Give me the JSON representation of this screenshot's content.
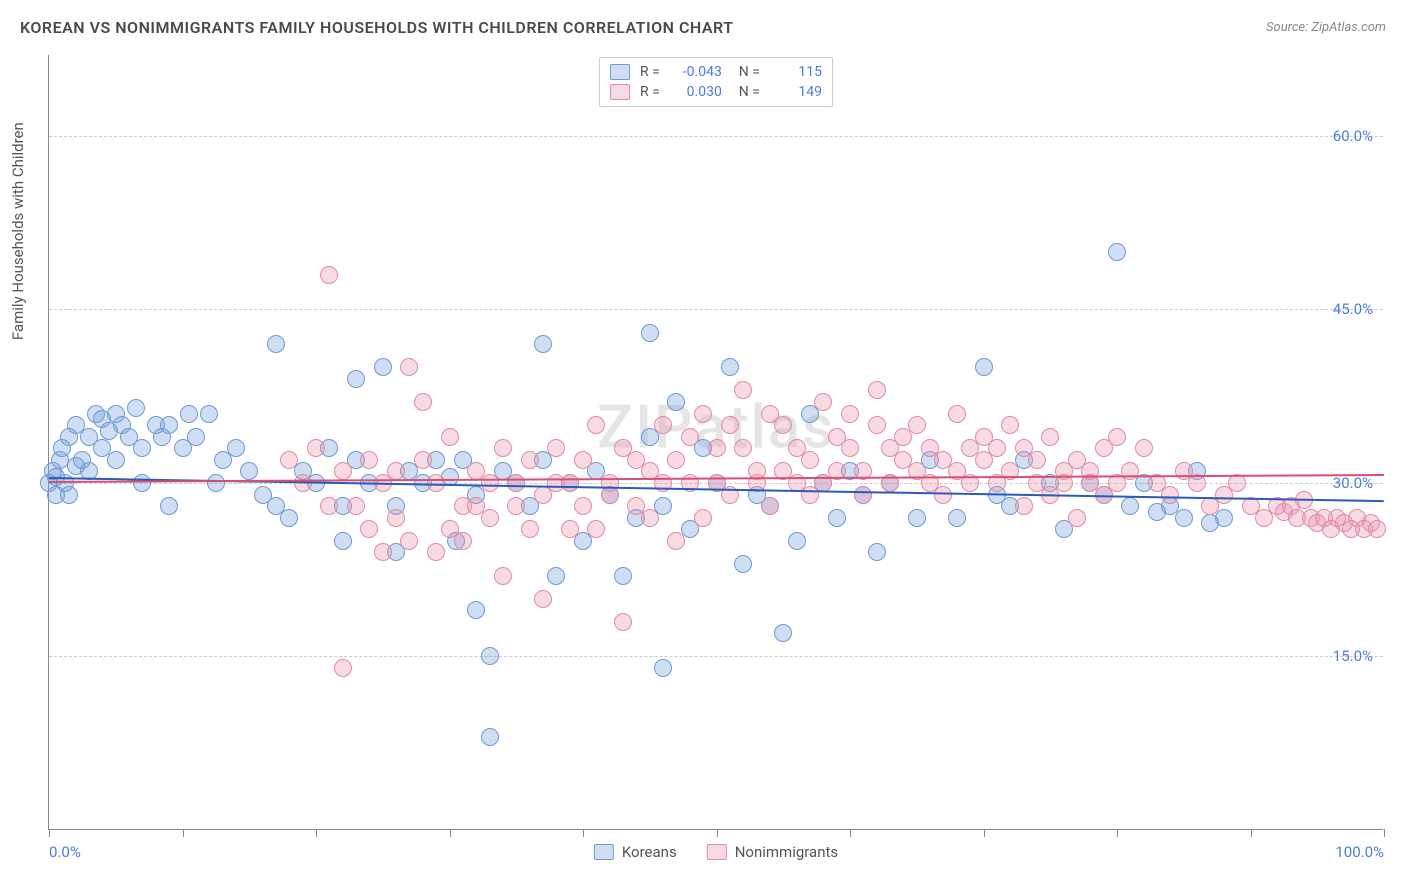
{
  "title": "KOREAN VS NONIMMIGRANTS FAMILY HOUSEHOLDS WITH CHILDREN CORRELATION CHART",
  "source": "Source: ZipAtlas.com",
  "watermark": "ZIPatlas",
  "ylabel": "Family Households with Children",
  "chart": {
    "type": "scatter",
    "xlim": [
      0,
      100
    ],
    "ylim": [
      0,
      67
    ],
    "yticks": [
      15,
      30,
      45,
      60
    ],
    "ytick_labels": [
      "15.0%",
      "30.0%",
      "45.0%",
      "60.0%"
    ],
    "xticks": [
      0,
      10,
      20,
      30,
      40,
      50,
      60,
      70,
      80,
      90,
      100
    ],
    "xtick_labels": {
      "0": "0.0%",
      "100": "100.0%"
    },
    "background_color": "#ffffff",
    "grid_color": "#cccccc",
    "axis_color": "#888888",
    "tick_label_color": "#4a7de0",
    "marker_radius": 9,
    "marker_stroke_width": 1.5
  },
  "series": {
    "koreans": {
      "label": "Koreans",
      "fill": "rgba(120,160,220,0.35)",
      "stroke": "#6f9ad6",
      "R": "-0.043",
      "N": "115",
      "trend": {
        "y_start": 30.5,
        "y_end": 28.5,
        "color": "#2a5bb8"
      },
      "points": [
        [
          0,
          30
        ],
        [
          0.3,
          31
        ],
        [
          0.5,
          29
        ],
        [
          0.5,
          30.5
        ],
        [
          0.8,
          32
        ],
        [
          1,
          33
        ],
        [
          1.2,
          30
        ],
        [
          1.5,
          34
        ],
        [
          1.5,
          29
        ],
        [
          2,
          31.5
        ],
        [
          2,
          35
        ],
        [
          2.5,
          32
        ],
        [
          3,
          34
        ],
        [
          3,
          31
        ],
        [
          3.5,
          36
        ],
        [
          4,
          33
        ],
        [
          4,
          35.5
        ],
        [
          4.5,
          34.5
        ],
        [
          5,
          32
        ],
        [
          5,
          36
        ],
        [
          5.5,
          35
        ],
        [
          6,
          34
        ],
        [
          6.5,
          36.5
        ],
        [
          7,
          33
        ],
        [
          7,
          30
        ],
        [
          8,
          35
        ],
        [
          8.5,
          34
        ],
        [
          9,
          28
        ],
        [
          9,
          35
        ],
        [
          10,
          33
        ],
        [
          10.5,
          36
        ],
        [
          11,
          34
        ],
        [
          12,
          36
        ],
        [
          12.5,
          30
        ],
        [
          13,
          32
        ],
        [
          14,
          33
        ],
        [
          15,
          31
        ],
        [
          16,
          29
        ],
        [
          17,
          42
        ],
        [
          17,
          28
        ],
        [
          18,
          27
        ],
        [
          19,
          31
        ],
        [
          20,
          30
        ],
        [
          21,
          33
        ],
        [
          22,
          28
        ],
        [
          22,
          25
        ],
        [
          23,
          39
        ],
        [
          23,
          32
        ],
        [
          24,
          30
        ],
        [
          25,
          40
        ],
        [
          26,
          28
        ],
        [
          26,
          24
        ],
        [
          27,
          31
        ],
        [
          28,
          30
        ],
        [
          29,
          32
        ],
        [
          30,
          30.5
        ],
        [
          30.5,
          25
        ],
        [
          31,
          32
        ],
        [
          32,
          29
        ],
        [
          32,
          19
        ],
        [
          33,
          15
        ],
        [
          33,
          8
        ],
        [
          34,
          31
        ],
        [
          35,
          30
        ],
        [
          36,
          28
        ],
        [
          37,
          42
        ],
        [
          37,
          32
        ],
        [
          38,
          22
        ],
        [
          39,
          30
        ],
        [
          40,
          25
        ],
        [
          41,
          31
        ],
        [
          42,
          29
        ],
        [
          43,
          22
        ],
        [
          44,
          27
        ],
        [
          45,
          43
        ],
        [
          45,
          34
        ],
        [
          46,
          28
        ],
        [
          46,
          14
        ],
        [
          47,
          37
        ],
        [
          48,
          26
        ],
        [
          49,
          33
        ],
        [
          50,
          30
        ],
        [
          51,
          40
        ],
        [
          52,
          23
        ],
        [
          53,
          29
        ],
        [
          54,
          28
        ],
        [
          55,
          17
        ],
        [
          56,
          25
        ],
        [
          57,
          36
        ],
        [
          58,
          30
        ],
        [
          59,
          27
        ],
        [
          60,
          31
        ],
        [
          61,
          29
        ],
        [
          62,
          24
        ],
        [
          63,
          30
        ],
        [
          65,
          27
        ],
        [
          66,
          32
        ],
        [
          68,
          27
        ],
        [
          70,
          40
        ],
        [
          71,
          29
        ],
        [
          72,
          28
        ],
        [
          73,
          32
        ],
        [
          75,
          30
        ],
        [
          76,
          26
        ],
        [
          78,
          30
        ],
        [
          79,
          29
        ],
        [
          80,
          50
        ],
        [
          81,
          28
        ],
        [
          82,
          30
        ],
        [
          83,
          27.5
        ],
        [
          84,
          28
        ],
        [
          85,
          27
        ],
        [
          86,
          31
        ],
        [
          87,
          26.5
        ],
        [
          88,
          27
        ]
      ]
    },
    "nonimmigrants": {
      "label": "Nonimmigrants",
      "fill": "rgba(235,150,175,0.35)",
      "stroke": "#e08ca5",
      "R": "0.030",
      "N": "149",
      "trend": {
        "y_start": 30.2,
        "y_end": 30.8,
        "color": "#d94f74"
      },
      "points": [
        [
          18,
          32
        ],
        [
          19,
          30
        ],
        [
          20,
          33
        ],
        [
          21,
          28
        ],
        [
          21,
          48
        ],
        [
          22,
          31
        ],
        [
          22,
          14
        ],
        [
          23,
          28
        ],
        [
          24,
          26
        ],
        [
          24,
          32
        ],
        [
          25,
          24
        ],
        [
          25,
          30
        ],
        [
          26,
          31
        ],
        [
          26,
          27
        ],
        [
          27,
          40
        ],
        [
          27,
          25
        ],
        [
          28,
          32
        ],
        [
          28,
          37
        ],
        [
          29,
          24
        ],
        [
          29,
          30
        ],
        [
          30,
          26
        ],
        [
          30,
          34
        ],
        [
          31,
          28
        ],
        [
          31,
          25
        ],
        [
          32,
          31
        ],
        [
          32,
          28
        ],
        [
          33,
          30
        ],
        [
          33,
          27
        ],
        [
          34,
          22
        ],
        [
          34,
          33
        ],
        [
          35,
          28
        ],
        [
          35,
          30
        ],
        [
          36,
          32
        ],
        [
          36,
          26
        ],
        [
          37,
          29
        ],
        [
          37,
          20
        ],
        [
          38,
          30
        ],
        [
          38,
          33
        ],
        [
          39,
          26
        ],
        [
          39,
          30
        ],
        [
          40,
          32
        ],
        [
          40,
          28
        ],
        [
          41,
          35
        ],
        [
          41,
          26
        ],
        [
          42,
          30
        ],
        [
          42,
          29
        ],
        [
          43,
          33
        ],
        [
          43,
          18
        ],
        [
          44,
          32
        ],
        [
          44,
          28
        ],
        [
          45,
          31
        ],
        [
          45,
          27
        ],
        [
          46,
          35
        ],
        [
          46,
          30
        ],
        [
          47,
          32
        ],
        [
          47,
          25
        ],
        [
          48,
          30
        ],
        [
          48,
          34
        ],
        [
          49,
          36
        ],
        [
          49,
          27
        ],
        [
          50,
          33
        ],
        [
          50,
          30
        ],
        [
          51,
          35
        ],
        [
          51,
          29
        ],
        [
          52,
          33
        ],
        [
          52,
          38
        ],
        [
          53,
          30
        ],
        [
          53,
          31
        ],
        [
          54,
          36
        ],
        [
          54,
          28
        ],
        [
          55,
          35
        ],
        [
          55,
          31
        ],
        [
          56,
          33
        ],
        [
          56,
          30
        ],
        [
          57,
          32
        ],
        [
          57,
          29
        ],
        [
          58,
          37
        ],
        [
          58,
          30
        ],
        [
          59,
          34
        ],
        [
          59,
          31
        ],
        [
          60,
          33
        ],
        [
          60,
          36
        ],
        [
          61,
          31
        ],
        [
          61,
          29
        ],
        [
          62,
          35
        ],
        [
          62,
          38
        ],
        [
          63,
          33
        ],
        [
          63,
          30
        ],
        [
          64,
          34
        ],
        [
          64,
          32
        ],
        [
          65,
          31
        ],
        [
          65,
          35
        ],
        [
          66,
          30
        ],
        [
          66,
          33
        ],
        [
          67,
          32
        ],
        [
          67,
          29
        ],
        [
          68,
          36
        ],
        [
          68,
          31
        ],
        [
          69,
          33
        ],
        [
          69,
          30
        ],
        [
          70,
          34
        ],
        [
          70,
          32
        ],
        [
          71,
          30
        ],
        [
          71,
          33
        ],
        [
          72,
          35
        ],
        [
          72,
          31
        ],
        [
          73,
          28
        ],
        [
          73,
          33
        ],
        [
          74,
          30
        ],
        [
          74,
          32
        ],
        [
          75,
          29
        ],
        [
          75,
          34
        ],
        [
          76,
          31
        ],
        [
          76,
          30
        ],
        [
          77,
          27
        ],
        [
          77,
          32
        ],
        [
          78,
          30
        ],
        [
          78,
          31
        ],
        [
          79,
          33
        ],
        [
          79,
          29
        ],
        [
          80,
          30
        ],
        [
          80,
          34
        ],
        [
          81,
          31
        ],
        [
          82,
          33
        ],
        [
          83,
          30
        ],
        [
          84,
          29
        ],
        [
          85,
          31
        ],
        [
          86,
          30
        ],
        [
          87,
          28
        ],
        [
          88,
          29
        ],
        [
          89,
          30
        ],
        [
          90,
          28
        ],
        [
          91,
          27
        ],
        [
          92,
          28
        ],
        [
          92.5,
          27.5
        ],
        [
          93,
          28
        ],
        [
          93.5,
          27
        ],
        [
          94,
          28.5
        ],
        [
          94.5,
          27
        ],
        [
          95,
          26.5
        ],
        [
          95.5,
          27
        ],
        [
          96,
          26
        ],
        [
          96.5,
          27
        ],
        [
          97,
          26.5
        ],
        [
          97.5,
          26
        ],
        [
          98,
          27
        ],
        [
          98.5,
          26
        ],
        [
          99,
          26.5
        ],
        [
          99.5,
          26
        ]
      ]
    }
  }
}
